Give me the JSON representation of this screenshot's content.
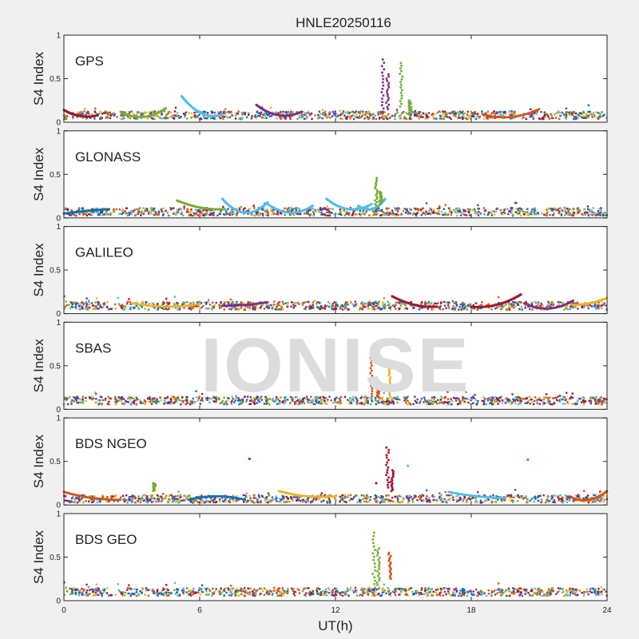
{
  "chart_data": {
    "type": "scatter",
    "title": "HNLE20250116",
    "xlabel": "UT(h)",
    "watermark": "IONISE",
    "xlim": [
      0,
      24
    ],
    "xticks": [
      "0",
      "6",
      "12",
      "18",
      "24"
    ],
    "colors": [
      "#0072bd",
      "#d95319",
      "#edb120",
      "#7e2f8e",
      "#77ac30",
      "#4dbeee",
      "#a2142f"
    ],
    "panels": [
      {
        "label": "GPS",
        "ylabel": "S4 Index",
        "ylim": [
          0,
          1
        ],
        "yticks": [
          "0",
          "0.5",
          "1"
        ],
        "baseline": 0.08,
        "arcs": [
          {
            "x0": 0.0,
            "x1": 1.5,
            "y0": 0.14,
            "ymid": 0.07,
            "y1": 0.08,
            "c": 6
          },
          {
            "x0": 5.2,
            "x1": 7.0,
            "y0": 0.3,
            "ymid": 0.1,
            "y1": 0.09,
            "c": 5
          },
          {
            "x0": 8.5,
            "x1": 10.5,
            "y0": 0.2,
            "ymid": 0.08,
            "y1": 0.12,
            "c": 3
          },
          {
            "x0": 2.5,
            "x1": 4.5,
            "y0": 0.12,
            "ymid": 0.06,
            "y1": 0.16,
            "c": 4
          },
          {
            "x0": 18.5,
            "x1": 21.0,
            "y0": 0.09,
            "ymid": 0.06,
            "y1": 0.15,
            "c": 1
          }
        ],
        "spikes": [
          {
            "x": 14.1,
            "ymax": 0.72,
            "ymin": 0.12,
            "c": 3
          },
          {
            "x": 14.3,
            "ymax": 0.55,
            "ymin": 0.15,
            "c": 3
          },
          {
            "x": 14.9,
            "ymax": 0.68,
            "ymin": 0.18,
            "c": 4
          },
          {
            "x": 15.3,
            "ymax": 0.25,
            "ymin": 0.1,
            "c": 4
          }
        ]
      },
      {
        "label": "GLONASS",
        "ylabel": "S4 Index",
        "ylim": [
          0,
          1
        ],
        "yticks": [
          "0",
          "0.5",
          "1"
        ],
        "baseline": 0.07,
        "arcs": [
          {
            "x0": 5.0,
            "x1": 7.0,
            "y0": 0.2,
            "ymid": 0.12,
            "y1": 0.1,
            "c": 4
          },
          {
            "x0": 7.0,
            "x1": 9.0,
            "y0": 0.22,
            "ymid": 0.06,
            "y1": 0.18,
            "c": 5
          },
          {
            "x0": 9.0,
            "x1": 11.0,
            "y0": 0.16,
            "ymid": 0.06,
            "y1": 0.14,
            "c": 5
          },
          {
            "x0": 11.6,
            "x1": 13.6,
            "y0": 0.22,
            "ymid": 0.1,
            "y1": 0.16,
            "c": 5
          },
          {
            "x0": 13.0,
            "x1": 14.2,
            "y0": 0.14,
            "ymid": 0.1,
            "y1": 0.22,
            "c": 5
          },
          {
            "x0": 0.0,
            "x1": 2.0,
            "y0": 0.05,
            "ymid": 0.08,
            "y1": 0.1,
            "c": 0
          }
        ],
        "spikes": [
          {
            "x": 13.8,
            "ymax": 0.46,
            "ymin": 0.14,
            "c": 4
          },
          {
            "x": 14.0,
            "ymax": 0.3,
            "ymin": 0.16,
            "c": 4
          }
        ]
      },
      {
        "label": "GALILEO",
        "ylabel": "S4 Index",
        "ylim": [
          0,
          1
        ],
        "yticks": [
          "0",
          "0.5",
          "1"
        ],
        "baseline": 0.09,
        "arcs": [
          {
            "x0": 14.5,
            "x1": 16.5,
            "y0": 0.2,
            "ymid": 0.1,
            "y1": 0.08,
            "c": 6
          },
          {
            "x0": 18.0,
            "x1": 20.2,
            "y0": 0.08,
            "ymid": 0.1,
            "y1": 0.22,
            "c": 6
          },
          {
            "x0": 20.5,
            "x1": 22.5,
            "y0": 0.1,
            "ymid": 0.06,
            "y1": 0.15,
            "c": 3
          },
          {
            "x0": 22.5,
            "x1": 24.0,
            "y0": 0.1,
            "ymid": 0.12,
            "y1": 0.18,
            "c": 2
          },
          {
            "x0": 3.0,
            "x1": 6.0,
            "y0": 0.12,
            "ymid": 0.08,
            "y1": 0.11,
            "c": 2
          },
          {
            "x0": 7.0,
            "x1": 9.0,
            "y0": 0.09,
            "ymid": 0.1,
            "y1": 0.13,
            "c": 3
          }
        ],
        "spikes": []
      },
      {
        "label": "SBAS",
        "ylabel": "S4 Index",
        "ylim": [
          0,
          1
        ],
        "yticks": [
          "0",
          "0.5",
          "1"
        ],
        "baseline": 0.1,
        "arcs": [],
        "spikes": [
          {
            "x": 13.6,
            "ymax": 0.62,
            "ymin": 0.15,
            "c": 1
          },
          {
            "x": 13.9,
            "ymax": 0.28,
            "ymin": 0.14,
            "c": 1
          },
          {
            "x": 14.4,
            "ymax": 0.5,
            "ymin": 0.14,
            "c": 2
          }
        ]
      },
      {
        "label": "BDS NGEO",
        "ylabel": "S4 Index",
        "ylim": [
          0,
          1
        ],
        "yticks": [
          "0",
          "0.5",
          "1"
        ],
        "baseline": 0.07,
        "arcs": [
          {
            "x0": 0.0,
            "x1": 2.5,
            "y0": 0.15,
            "ymid": 0.08,
            "y1": 0.06,
            "c": 1
          },
          {
            "x0": 9.5,
            "x1": 12.0,
            "y0": 0.16,
            "ymid": 0.1,
            "y1": 0.1,
            "c": 2
          },
          {
            "x0": 17.0,
            "x1": 19.5,
            "y0": 0.15,
            "ymid": 0.1,
            "y1": 0.08,
            "c": 5
          },
          {
            "x0": 22.5,
            "x1": 24.0,
            "y0": 0.08,
            "ymid": 0.06,
            "y1": 0.16,
            "c": 1
          },
          {
            "x0": 5.5,
            "x1": 8.0,
            "y0": 0.06,
            "ymid": 0.1,
            "y1": 0.06,
            "c": 0
          }
        ],
        "spikes": [
          {
            "x": 14.3,
            "ymax": 0.66,
            "ymin": 0.2,
            "c": 6
          },
          {
            "x": 14.5,
            "ymax": 0.4,
            "ymin": 0.16,
            "c": 6
          },
          {
            "x": 4.0,
            "ymax": 0.25,
            "ymin": 0.16,
            "c": 4
          }
        ],
        "dots": [
          {
            "x": 8.2,
            "y": 0.53,
            "c": 6
          },
          {
            "x": 15.2,
            "y": 0.45,
            "c": 5
          },
          {
            "x": 20.5,
            "y": 0.52,
            "c": 1
          },
          {
            "x": 13.8,
            "y": 0.25,
            "c": 6
          }
        ]
      },
      {
        "label": "BDS GEO",
        "ylabel": "S4 Index",
        "ylim": [
          0,
          1
        ],
        "yticks": [
          "0",
          "0.5",
          "1"
        ],
        "baseline": 0.1,
        "arcs": [],
        "spikes": [
          {
            "x": 13.7,
            "ymax": 0.78,
            "ymin": 0.15,
            "c": 4
          },
          {
            "x": 13.9,
            "ymax": 0.6,
            "ymin": 0.18,
            "c": 4
          },
          {
            "x": 14.4,
            "ymax": 0.55,
            "ymin": 0.25,
            "c": 1
          }
        ]
      }
    ]
  }
}
